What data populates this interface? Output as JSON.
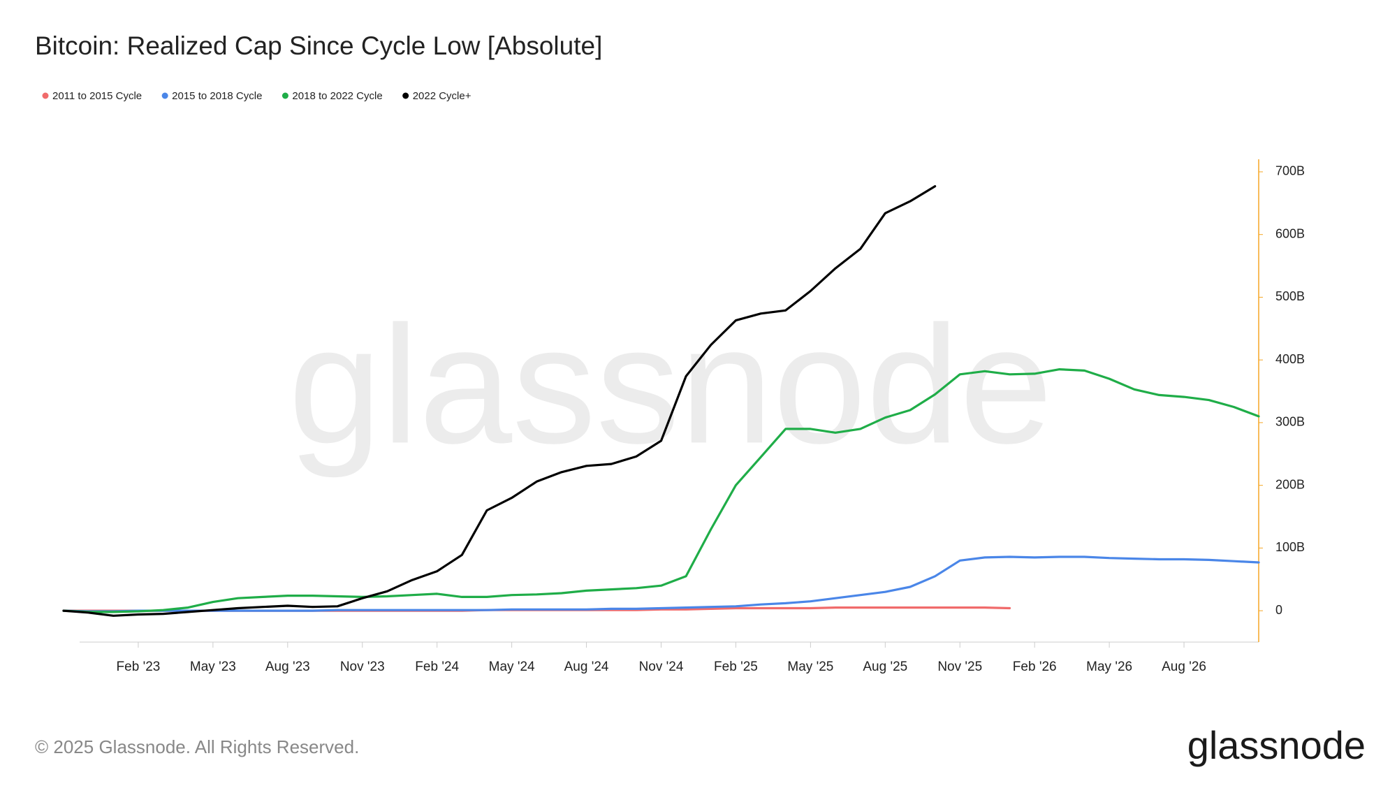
{
  "chart_data": {
    "type": "line",
    "title": "Bitcoin: Realized Cap Since Cycle Low [Absolute]",
    "watermark": "glassnode",
    "footer": "© 2025 Glassnode. All Rights Reserved.",
    "logo": "glassnode",
    "x": [
      "2022-11",
      "2022-12",
      "2023-01",
      "2023-02",
      "2023-03",
      "2023-04",
      "2023-05",
      "2023-06",
      "2023-07",
      "2023-08",
      "2023-09",
      "2023-10",
      "2023-11",
      "2023-12",
      "2024-01",
      "2024-02",
      "2024-03",
      "2024-04",
      "2024-05",
      "2024-06",
      "2024-07",
      "2024-08",
      "2024-09",
      "2024-10",
      "2024-11",
      "2024-12",
      "2025-01",
      "2025-02",
      "2025-03",
      "2025-04",
      "2025-05",
      "2025-06",
      "2025-07",
      "2025-08",
      "2025-09",
      "2025-10",
      "2025-11",
      "2025-12",
      "2026-01",
      "2026-02",
      "2026-03",
      "2026-04",
      "2026-05",
      "2026-06",
      "2026-07",
      "2026-08",
      "2026-09",
      "2026-10",
      "2026-11"
    ],
    "xlim": [
      "2022-11",
      "2026-11"
    ],
    "xticks": [
      {
        "value": "2023-02",
        "label": "Feb '23"
      },
      {
        "value": "2023-05",
        "label": "May '23"
      },
      {
        "value": "2023-08",
        "label": "Aug '23"
      },
      {
        "value": "2023-11",
        "label": "Nov '23"
      },
      {
        "value": "2024-02",
        "label": "Feb '24"
      },
      {
        "value": "2024-05",
        "label": "May '24"
      },
      {
        "value": "2024-08",
        "label": "Aug '24"
      },
      {
        "value": "2024-11",
        "label": "Nov '24"
      },
      {
        "value": "2025-02",
        "label": "Feb '25"
      },
      {
        "value": "2025-05",
        "label": "May '25"
      },
      {
        "value": "2025-08",
        "label": "Aug '25"
      },
      {
        "value": "2025-11",
        "label": "Nov '25"
      },
      {
        "value": "2026-02",
        "label": "Feb '26"
      },
      {
        "value": "2026-05",
        "label": "May '26"
      },
      {
        "value": "2026-08",
        "label": "Aug '26"
      }
    ],
    "ylim": [
      -50,
      720
    ],
    "yticks": [
      0,
      {
        "value": 100,
        "label": "100B"
      },
      {
        "value": 200,
        "label": "200B"
      },
      {
        "value": 300,
        "label": "300B"
      },
      {
        "value": 400,
        "label": "400B"
      },
      {
        "value": 500,
        "label": "500B"
      },
      {
        "value": 600,
        "label": "600B"
      },
      {
        "value": 700,
        "label": "700B"
      }
    ],
    "y_axis_side": "right",
    "y_axis_color": "#f5a623",
    "grid": false,
    "legend": "top-left",
    "series": [
      {
        "name": "2011 to 2015 Cycle",
        "color": "#f06b6b",
        "values": [
          0,
          0,
          0,
          0,
          0,
          0,
          0,
          0,
          0,
          0,
          0,
          0,
          0,
          0,
          0,
          0,
          0,
          1,
          1,
          1,
          1,
          1,
          1,
          1,
          2,
          2,
          3,
          4,
          4,
          4,
          4,
          5,
          5,
          5,
          5,
          5,
          5,
          5,
          4,
          null,
          null,
          null,
          null,
          null,
          null,
          null,
          null,
          null,
          null
        ]
      },
      {
        "name": "2015 to 2018 Cycle",
        "color": "#4a86e8",
        "values": [
          0,
          -1,
          -1,
          0,
          0,
          0,
          0,
          0,
          0,
          0,
          0,
          1,
          1,
          1,
          1,
          1,
          1,
          1,
          2,
          2,
          2,
          2,
          3,
          3,
          4,
          5,
          6,
          7,
          10,
          12,
          15,
          20,
          25,
          30,
          38,
          55,
          80,
          85,
          86,
          85,
          86,
          86,
          84,
          83,
          82,
          82,
          81,
          79,
          77
        ]
      },
      {
        "name": "2018 to 2022 Cycle",
        "color": "#1fad48",
        "values": [
          0,
          -2,
          -2,
          -1,
          1,
          5,
          14,
          20,
          22,
          24,
          24,
          23,
          22,
          23,
          25,
          27,
          22,
          22,
          25,
          26,
          28,
          32,
          34,
          36,
          40,
          55,
          130,
          200,
          245,
          290,
          290,
          284,
          290,
          308,
          320,
          345,
          377,
          382,
          377,
          378,
          385,
          383,
          370,
          353,
          344,
          341,
          336,
          325,
          310
        ]
      },
      {
        "name": "2022 Cycle+",
        "color": "#000000",
        "values": [
          0,
          -3,
          -8,
          -6,
          -5,
          -2,
          1,
          4,
          6,
          8,
          6,
          7,
          20,
          31,
          49,
          63,
          89,
          160,
          180,
          206,
          221,
          231,
          234,
          246,
          271,
          374,
          424,
          463,
          474,
          479,
          510,
          546,
          577,
          634,
          653,
          677,
          null,
          null,
          null,
          null,
          null,
          null,
          null,
          null,
          null,
          null,
          null,
          null,
          null
        ]
      }
    ]
  }
}
